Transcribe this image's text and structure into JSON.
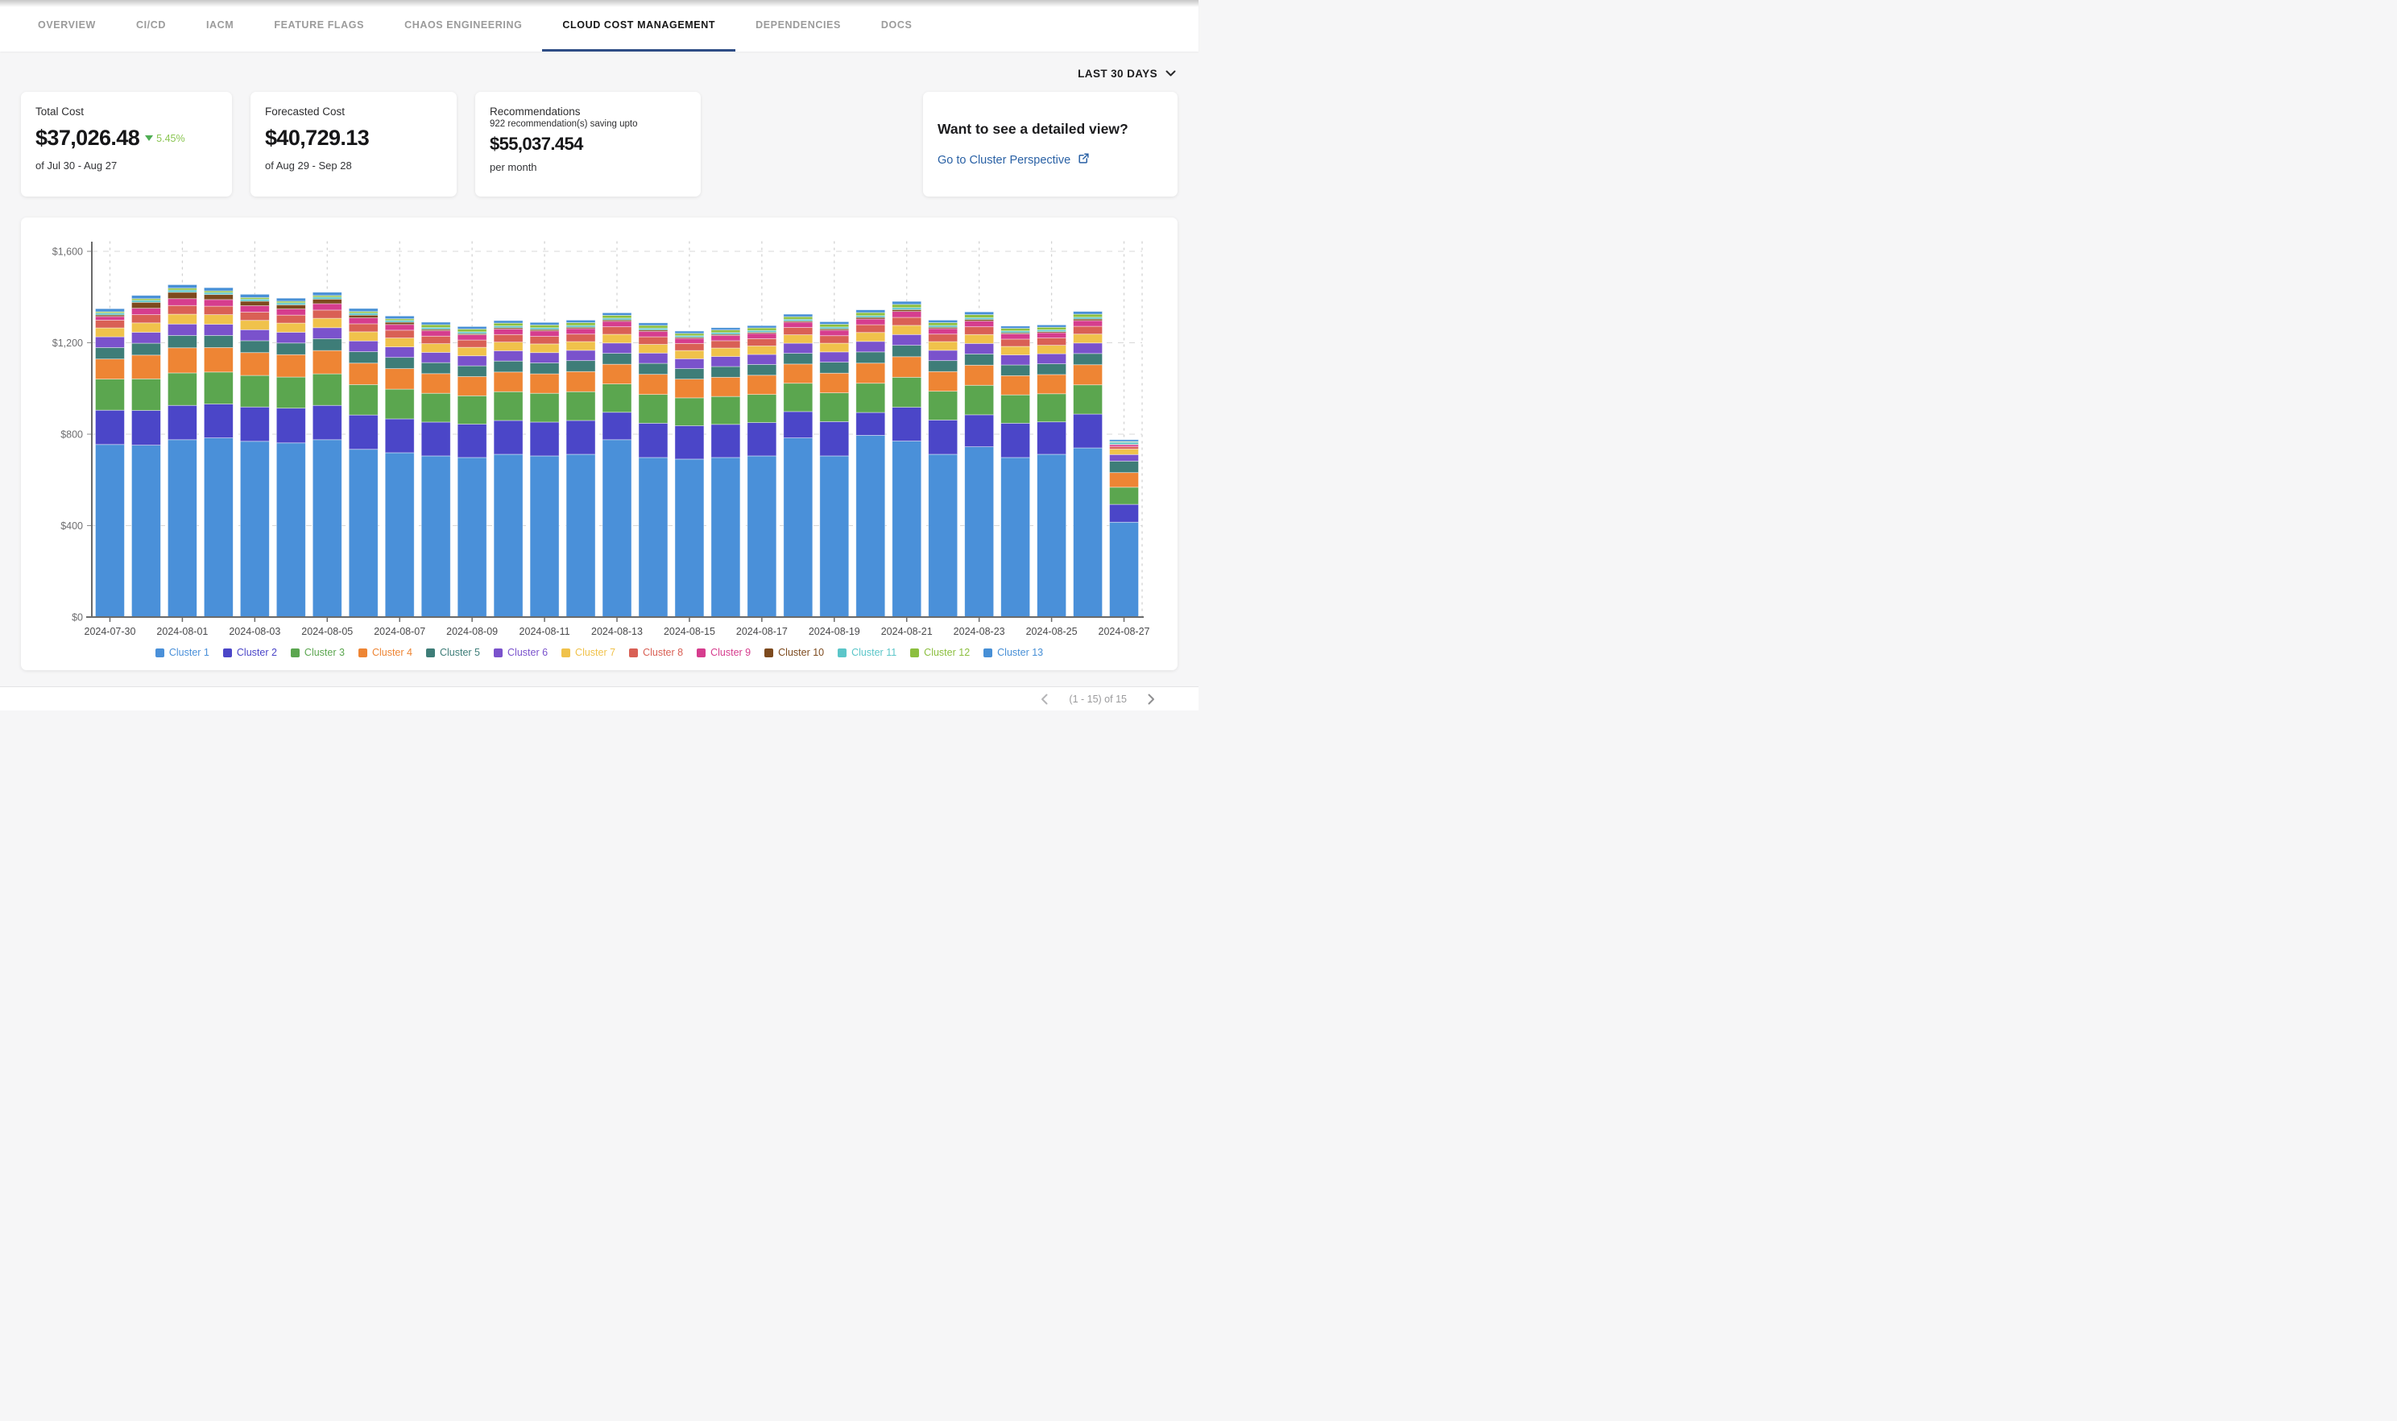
{
  "nav": {
    "tabs": [
      {
        "label": "OVERVIEW",
        "active": false
      },
      {
        "label": "CI/CD",
        "active": false
      },
      {
        "label": "IACM",
        "active": false
      },
      {
        "label": "FEATURE FLAGS",
        "active": false
      },
      {
        "label": "CHAOS ENGINEERING",
        "active": false
      },
      {
        "label": "CLOUD COST MANAGEMENT",
        "active": true
      },
      {
        "label": "DEPENDENCIES",
        "active": false
      },
      {
        "label": "DOCS",
        "active": false
      }
    ],
    "active_underline_color": "#2e4d86"
  },
  "toolbar": {
    "time_range_label": "LAST 30 DAYS"
  },
  "cards": {
    "total_cost": {
      "title": "Total Cost",
      "value": "$37,026.48",
      "delta": "5.45%",
      "delta_direction": "down",
      "delta_arrow_color": "#4fae54",
      "delta_text_color": "#8bc653",
      "period": "of Jul 30 - Aug 27"
    },
    "forecasted_cost": {
      "title": "Forecasted Cost",
      "value": "$40,729.13",
      "period": "of Aug 29 - Sep 28"
    },
    "recommendations": {
      "title": "Recommendations",
      "subtitle": "922 recommendation(s) saving upto",
      "value": "$55,037.454",
      "suffix": "per month"
    },
    "detail_view": {
      "title": "Want to see a detailed view?",
      "link_label": "Go to Cluster Perspective",
      "link_color": "#2a61a5"
    }
  },
  "chart_data": {
    "type": "bar",
    "stacked": true,
    "title": "",
    "xlabel": "",
    "ylabel": "",
    "ylim": [
      0,
      1600
    ],
    "grid": "dashed",
    "legend_position": "bottom",
    "y_ticks": [
      {
        "value": 0,
        "label": "$0"
      },
      {
        "value": 400,
        "label": "$400"
      },
      {
        "value": 800,
        "label": "$800"
      },
      {
        "value": 1200,
        "label": "$1,200"
      },
      {
        "value": 1600,
        "label": "$1,600"
      }
    ],
    "x_tick_every": 2,
    "x": [
      "2024-07-30",
      "2024-07-31",
      "2024-08-01",
      "2024-08-02",
      "2024-08-03",
      "2024-08-04",
      "2024-08-05",
      "2024-08-06",
      "2024-08-07",
      "2024-08-08",
      "2024-08-09",
      "2024-08-10",
      "2024-08-11",
      "2024-08-12",
      "2024-08-13",
      "2024-08-14",
      "2024-08-15",
      "2024-08-16",
      "2024-08-17",
      "2024-08-18",
      "2024-08-19",
      "2024-08-20",
      "2024-08-21",
      "2024-08-22",
      "2024-08-23",
      "2024-08-24",
      "2024-08-25",
      "2024-08-26",
      "2024-08-27"
    ],
    "series": [
      {
        "name": "Cluster 1",
        "color": "#4a90d9",
        "values": [
          755,
          752,
          776,
          784,
          769,
          762,
          776,
          734,
          719,
          705,
          698,
          712,
          705,
          712,
          776,
          698,
          691,
          698,
          705,
          784,
          705,
          795,
          770,
          712,
          745,
          698,
          712,
          740,
          415
        ]
      },
      {
        "name": "Cluster 2",
        "color": "#4b46c8",
        "values": [
          150,
          152,
          150,
          148,
          150,
          152,
          150,
          150,
          148,
          148,
          146,
          148,
          148,
          148,
          120,
          150,
          146,
          145,
          146,
          115,
          150,
          100,
          148,
          150,
          140,
          150,
          142,
          148,
          78
        ]
      },
      {
        "name": "Cluster 3",
        "color": "#5ba64f",
        "values": [
          136,
          138,
          142,
          140,
          138,
          136,
          138,
          133,
          130,
          126,
          124,
          126,
          126,
          126,
          124,
          126,
          122,
          122,
          123,
          124,
          126,
          128,
          131,
          126,
          129,
          124,
          123,
          128,
          75
        ]
      },
      {
        "name": "Cluster 4",
        "color": "#ee8534",
        "values": [
          88,
          104,
          110,
          107,
          100,
          98,
          102,
          94,
          90,
          86,
          84,
          86,
          85,
          88,
          86,
          88,
          82,
          84,
          84,
          84,
          86,
          88,
          90,
          86,
          88,
          84,
          84,
          88,
          64
        ]
      },
      {
        "name": "Cluster 5",
        "color": "#3e7d78",
        "values": [
          50,
          52,
          54,
          53,
          52,
          51,
          52,
          50,
          49,
          48,
          47,
          48,
          48,
          48,
          48,
          48,
          46,
          47,
          47,
          47,
          48,
          49,
          50,
          48,
          49,
          47,
          47,
          49,
          50
        ]
      },
      {
        "name": "Cluster 6",
        "color": "#7a52cc",
        "values": [
          47,
          48,
          50,
          49,
          48,
          47,
          48,
          47,
          46,
          45,
          44,
          45,
          45,
          45,
          45,
          45,
          43,
          44,
          44,
          44,
          45,
          46,
          47,
          45,
          46,
          44,
          44,
          46,
          29
        ]
      },
      {
        "name": "Cluster 7",
        "color": "#f0c24b",
        "values": [
          39,
          41,
          43,
          42,
          41,
          40,
          41,
          40,
          39,
          38,
          37,
          38,
          38,
          38,
          38,
          38,
          36,
          37,
          37,
          37,
          38,
          39,
          40,
          38,
          39,
          37,
          37,
          39,
          24
        ]
      },
      {
        "name": "Cluster 8",
        "color": "#d96055",
        "values": [
          34,
          36,
          38,
          37,
          36,
          35,
          36,
          35,
          34,
          33,
          32,
          33,
          33,
          33,
          33,
          33,
          31,
          32,
          32,
          32,
          33,
          34,
          35,
          33,
          34,
          32,
          32,
          34,
          10
        ]
      },
      {
        "name": "Cluster 9",
        "color": "#d63d8e",
        "values": [
          16,
          28,
          30,
          29,
          28,
          27,
          28,
          26,
          25,
          24,
          23,
          24,
          24,
          24,
          24,
          24,
          22,
          23,
          23,
          23,
          24,
          25,
          26,
          24,
          25,
          23,
          23,
          25,
          9
        ]
      },
      {
        "name": "Cluster 10",
        "color": "#7d4a1e",
        "values": [
          7,
          26,
          28,
          22,
          20,
          18,
          20,
          12,
          10,
          6,
          5,
          6,
          6,
          6,
          6,
          6,
          5,
          5,
          5,
          5,
          6,
          7,
          8,
          6,
          7,
          5,
          5,
          7,
          2
        ]
      },
      {
        "name": "Cluster 11",
        "color": "#5bc6c9",
        "values": [
          8,
          9,
          10,
          9,
          9,
          9,
          9,
          9,
          8,
          8,
          8,
          8,
          8,
          8,
          8,
          8,
          7,
          8,
          8,
          8,
          8,
          8,
          9,
          8,
          8,
          8,
          8,
          8,
          9
        ]
      },
      {
        "name": "Cluster 12",
        "color": "#8cbf3f",
        "values": [
          6,
          7,
          8,
          7,
          7,
          7,
          7,
          7,
          7,
          12,
          12,
          12,
          12,
          12,
          12,
          12,
          10,
          11,
          11,
          11,
          12,
          13,
          14,
          12,
          13,
          11,
          11,
          13,
          3
        ]
      },
      {
        "name": "Cluster 13",
        "color": "#478fd6",
        "values": [
          13,
          14,
          15,
          14,
          14,
          13,
          14,
          13,
          12,
          11,
          11,
          11,
          11,
          11,
          11,
          11,
          10,
          10,
          10,
          11,
          11,
          12,
          13,
          11,
          12,
          10,
          10,
          12,
          8
        ]
      }
    ]
  },
  "footer": {
    "pagination": "(1 - 15) of 15"
  }
}
